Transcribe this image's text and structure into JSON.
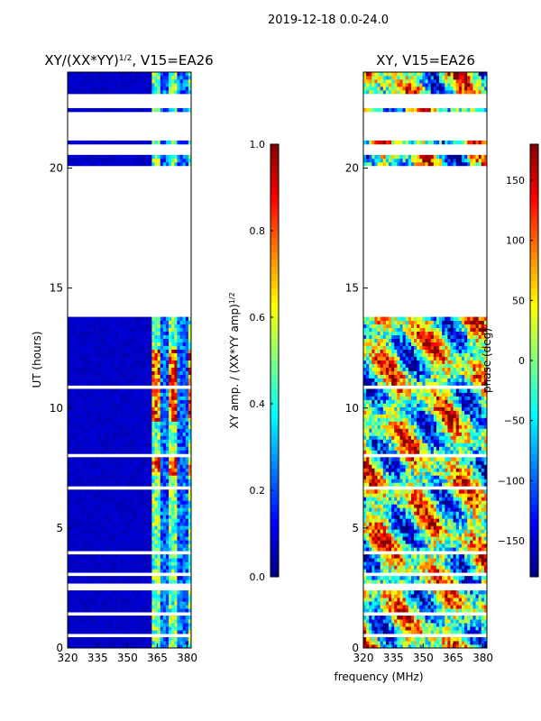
{
  "figure_title": "2019-12-18 0.0-24.0",
  "chart_data": [
    {
      "type": "heatmap",
      "title_main": "XY/(XX*YY)",
      "title_sup": "1/2",
      "title_rest": ", V15=EA26",
      "xlabel": "frequency (MHz)",
      "ylabel": "UT (hours)",
      "xlim": [
        320,
        382
      ],
      "ylim": [
        0,
        24
      ],
      "x_ticks": [
        320,
        335,
        350,
        365,
        380
      ],
      "y_ticks": [
        0,
        5,
        10,
        15,
        20
      ],
      "colorbar": {
        "label_main": "XY amp. / (XX*YY amp)",
        "label_sup": "1/2",
        "range": [
          0.0,
          1.0
        ],
        "ticks": [
          "0.0",
          "0.2",
          "0.4",
          "0.6",
          "0.8",
          "1.0"
        ],
        "tick_values": [
          0.0,
          0.2,
          0.4,
          0.6,
          0.8,
          1.0
        ],
        "colormap": "jet"
      },
      "blank_ut_ranges": [
        [
          0.0,
          0.05
        ],
        [
          0.45,
          0.6
        ],
        [
          1.35,
          1.45
        ],
        [
          2.45,
          2.75
        ],
        [
          3.05,
          3.2
        ],
        [
          3.95,
          4.05
        ],
        [
          4.45,
          4.55
        ],
        [
          6.65,
          6.75
        ],
        [
          7.9,
          8.05
        ],
        [
          10.85,
          10.95
        ],
        [
          13.85,
          20.05
        ],
        [
          20.55,
          20.95
        ],
        [
          21.2,
          22.35
        ],
        [
          22.45,
          23.05
        ]
      ],
      "pattern": "low amplitude (~0.05) below 362 MHz; patchy 0.2-1.0 in 362-382 MHz band, strongest near 7.5 h and 10-12 h"
    },
    {
      "type": "heatmap",
      "title_main": "XY, V15=EA26",
      "xlabel": "frequency (MHz)",
      "ylabel": "",
      "xlim": [
        320,
        382
      ],
      "ylim": [
        0,
        24
      ],
      "x_ticks": [
        320,
        335,
        350,
        365,
        380
      ],
      "y_ticks": [
        0,
        5,
        10,
        15,
        20
      ],
      "colorbar": {
        "label_main": "phase (deg)",
        "range": [
          -180,
          180
        ],
        "ticks": [
          "−150",
          "−100",
          "−50",
          "0",
          "50",
          "100",
          "150"
        ],
        "tick_values": [
          -150,
          -100,
          -50,
          0,
          50,
          100,
          150
        ],
        "colormap": "jet"
      },
      "blank_ut_ranges": [
        [
          0.0,
          0.05
        ],
        [
          0.45,
          0.6
        ],
        [
          1.35,
          1.45
        ],
        [
          2.45,
          2.75
        ],
        [
          3.05,
          3.2
        ],
        [
          3.95,
          4.05
        ],
        [
          4.45,
          4.55
        ],
        [
          6.65,
          6.75
        ],
        [
          7.9,
          8.05
        ],
        [
          10.85,
          10.95
        ],
        [
          13.85,
          20.05
        ],
        [
          20.55,
          20.95
        ],
        [
          21.2,
          22.35
        ],
        [
          22.45,
          23.05
        ]
      ],
      "pattern": "noisy phase spanning -180 to 180 deg across all frequencies"
    }
  ]
}
